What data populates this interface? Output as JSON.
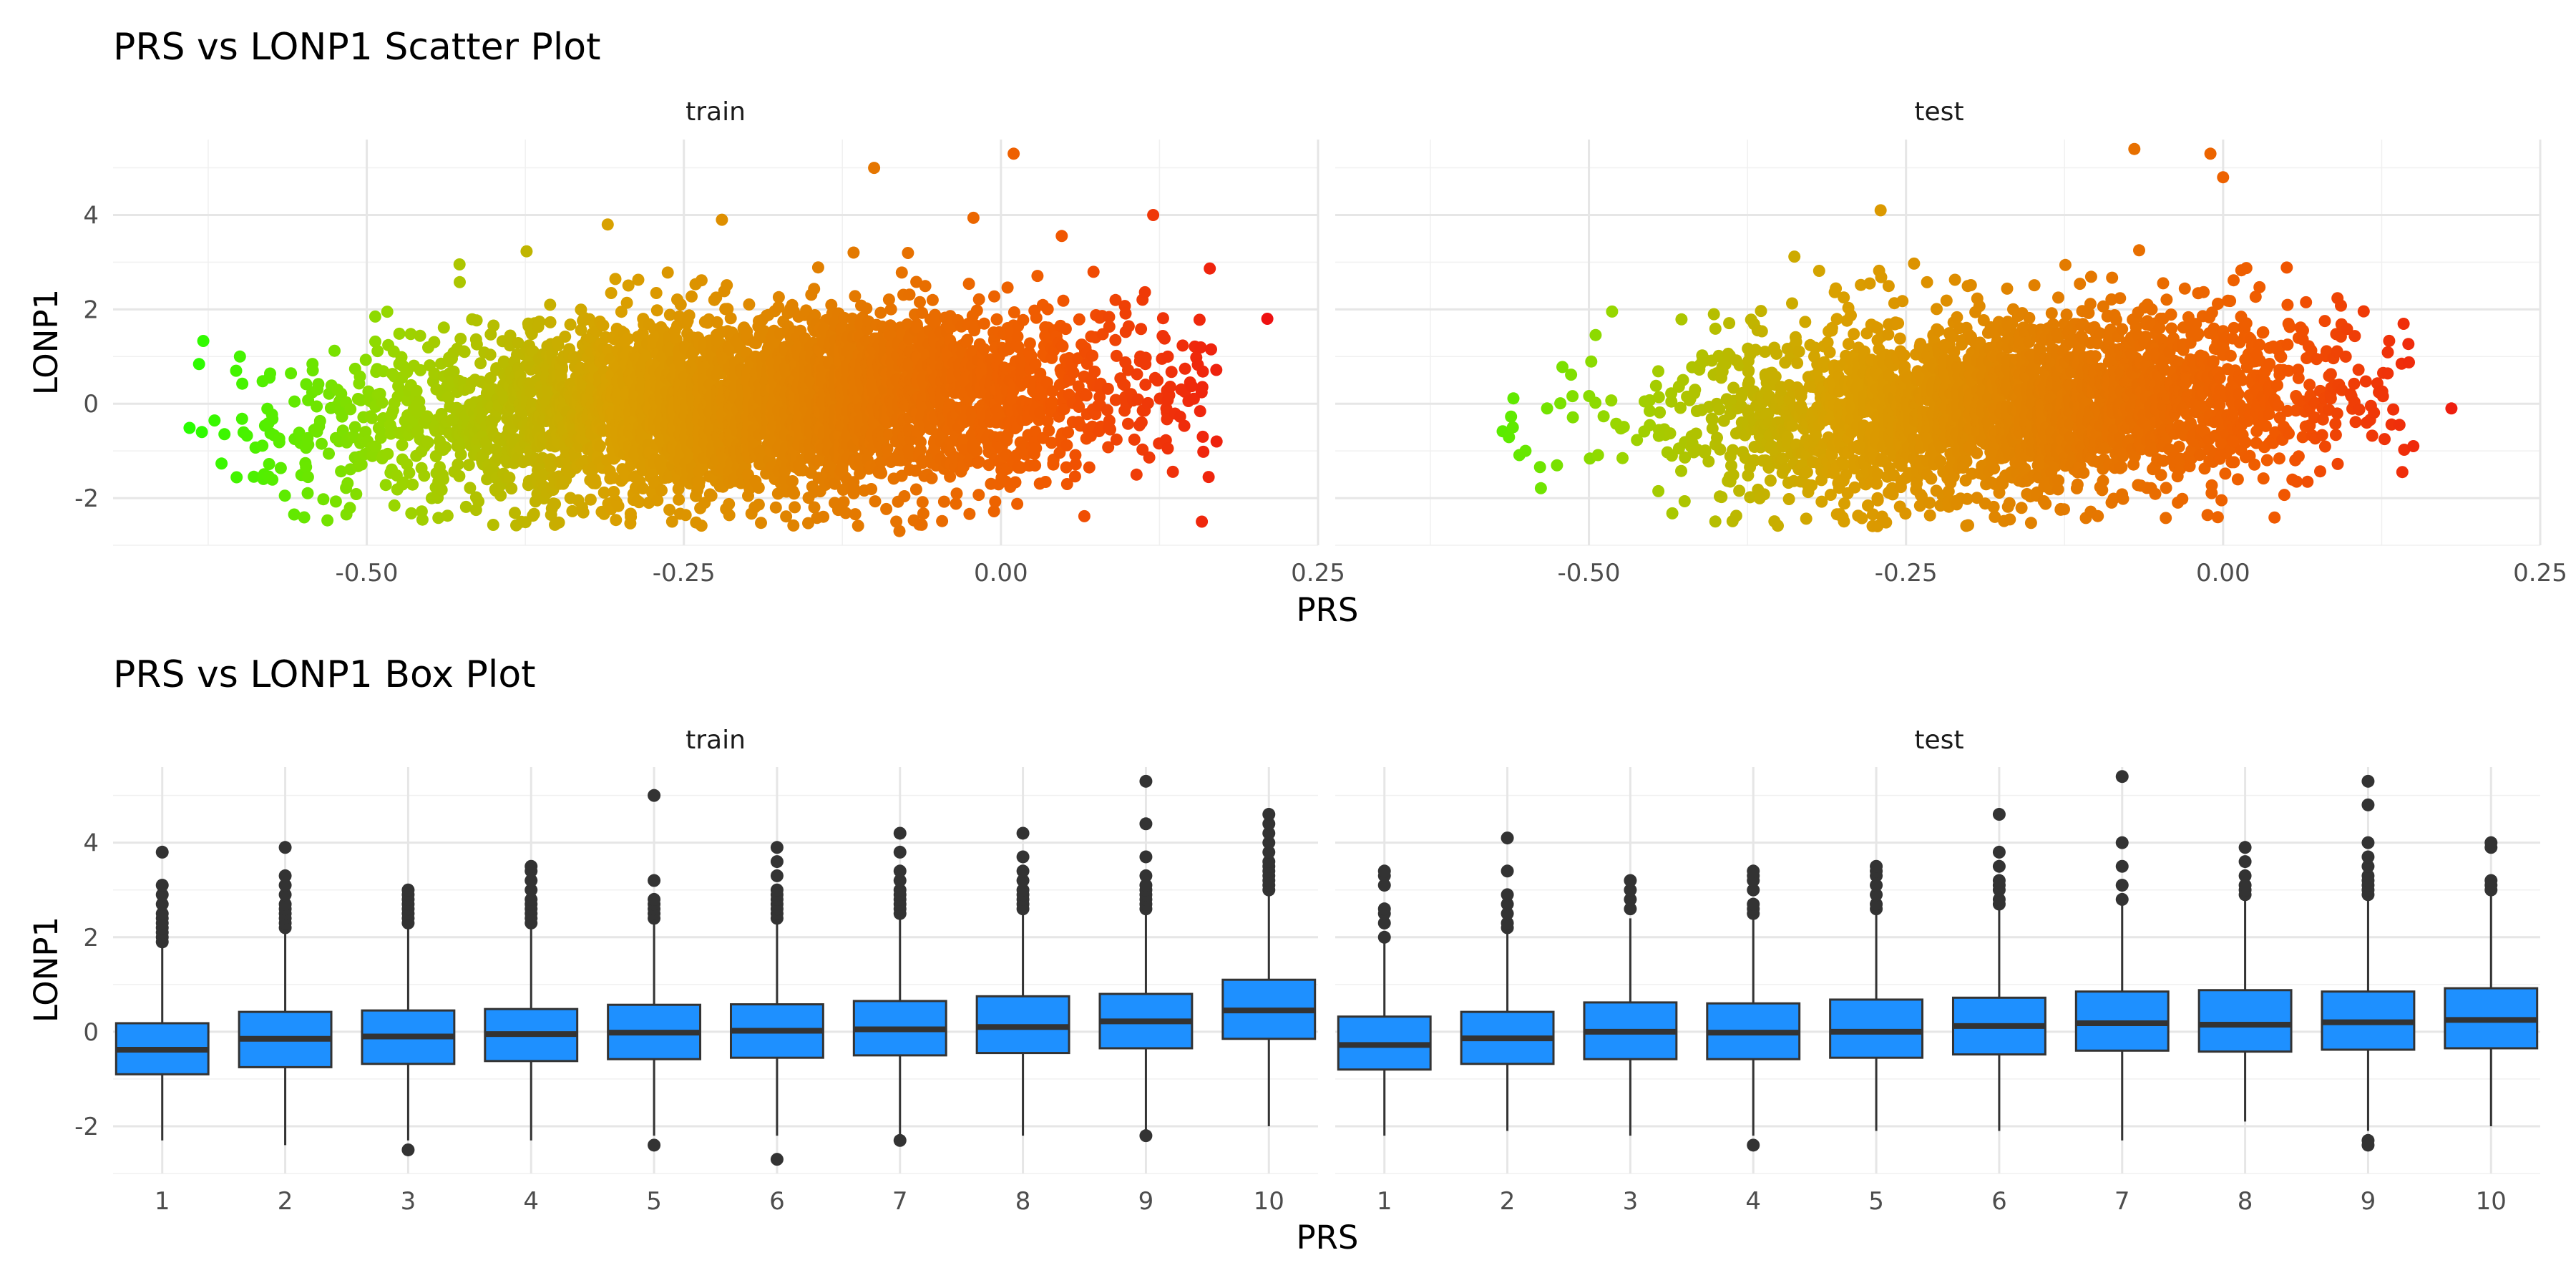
{
  "chart_data": [
    {
      "type": "scatter",
      "title": "PRS vs LONP1 Scatter Plot",
      "xlabel": "PRS",
      "ylabel": "LONP1",
      "xlim": [
        -0.7,
        0.25
      ],
      "ylim": [
        -3.0,
        5.6
      ],
      "x_ticks": [
        -0.5,
        -0.25,
        0.0,
        0.25
      ],
      "x_tick_labels": [
        "-0.50",
        "-0.25",
        "0.00",
        "0.25"
      ],
      "y_ticks": [
        -2,
        0,
        2,
        4
      ],
      "y_tick_labels": [
        "-2",
        "0",
        "2",
        "4"
      ],
      "grid": true,
      "color_gradient": [
        "#22ff00",
        "#99d600",
        "#d9a000",
        "#e27d00",
        "#f05a00",
        "#ee1111"
      ],
      "color_range": [
        -0.65,
        0.21
      ],
      "panels": [
        {
          "name": "train",
          "center_x": -0.2,
          "spread_x": 0.15,
          "min_x": -0.64,
          "max_x": 0.17,
          "corr_slope": 1.2,
          "resid_sd": 0.95,
          "point_count": 4200,
          "outliers": [
            [
              0.21,
              1.8
            ],
            [
              0.17,
              -0.8
            ],
            [
              -0.1,
              5.0
            ],
            [
              0.01,
              5.3
            ],
            [
              0.12,
              4.0
            ],
            [
              -0.31,
              3.8
            ],
            [
              -0.22,
              3.9
            ],
            [
              -0.08,
              -2.7
            ],
            [
              -0.63,
              -0.6
            ],
            [
              -0.6,
              1.0
            ]
          ]
        },
        {
          "name": "test",
          "center_x": -0.16,
          "spread_x": 0.13,
          "min_x": -0.57,
          "max_x": 0.15,
          "corr_slope": 1.2,
          "resid_sd": 0.95,
          "point_count": 2800,
          "outliers": [
            [
              0.18,
              -0.1
            ],
            [
              -0.07,
              5.4
            ],
            [
              -0.01,
              5.3
            ],
            [
              0.0,
              4.8
            ],
            [
              -0.27,
              4.1
            ],
            [
              -0.56,
              -0.5
            ],
            [
              0.15,
              -0.9
            ],
            [
              -0.55,
              -1.0
            ],
            [
              -0.18,
              -2.4
            ]
          ]
        }
      ]
    },
    {
      "type": "box",
      "title": "PRS vs LONP1 Box Plot",
      "xlabel": "PRS",
      "ylabel": "LONP1",
      "categories": [
        "1",
        "2",
        "3",
        "4",
        "5",
        "6",
        "7",
        "8",
        "9",
        "10"
      ],
      "ylim": [
        -3.0,
        5.6
      ],
      "y_ticks": [
        -2,
        0,
        2,
        4
      ],
      "y_tick_labels": [
        "-2",
        "0",
        "2",
        "4"
      ],
      "box_color": "#1e90ff",
      "grid": true,
      "panels": [
        {
          "name": "train",
          "stats": [
            {
              "q1": -0.9,
              "median": -0.38,
              "q3": 0.18,
              "low": -2.3,
              "high": 1.8,
              "outliers": [
                1.9,
                2.0,
                2.1,
                2.2,
                2.3,
                2.4,
                2.5,
                2.7,
                2.9,
                3.1,
                3.8
              ]
            },
            {
              "q1": -0.75,
              "median": -0.15,
              "q3": 0.42,
              "low": -2.4,
              "high": 2.1,
              "outliers": [
                2.2,
                2.3,
                2.4,
                2.5,
                2.6,
                2.7,
                2.9,
                3.1,
                3.3,
                3.9
              ]
            },
            {
              "q1": -0.68,
              "median": -0.1,
              "q3": 0.45,
              "low": -2.3,
              "high": 2.2,
              "outliers": [
                2.3,
                2.4,
                2.5,
                2.6,
                2.7,
                2.8,
                2.9,
                3.0,
                -2.5
              ]
            },
            {
              "q1": -0.62,
              "median": -0.05,
              "q3": 0.48,
              "low": -2.3,
              "high": 2.2,
              "outliers": [
                2.3,
                2.4,
                2.5,
                2.6,
                2.7,
                2.8,
                3.0,
                3.2,
                3.4,
                3.5
              ]
            },
            {
              "q1": -0.58,
              "median": -0.02,
              "q3": 0.57,
              "low": -2.2,
              "high": 2.3,
              "outliers": [
                2.4,
                2.5,
                2.6,
                2.7,
                2.8,
                3.2,
                5.0,
                -2.4
              ]
            },
            {
              "q1": -0.55,
              "median": 0.02,
              "q3": 0.58,
              "low": -2.2,
              "high": 2.3,
              "outliers": [
                2.4,
                2.5,
                2.6,
                2.7,
                2.8,
                2.9,
                3.0,
                3.3,
                3.6,
                3.9,
                -2.7
              ]
            },
            {
              "q1": -0.5,
              "median": 0.05,
              "q3": 0.65,
              "low": -2.3,
              "high": 2.4,
              "outliers": [
                2.5,
                2.6,
                2.7,
                2.8,
                2.9,
                3.0,
                3.2,
                3.4,
                3.8,
                4.2,
                -2.3
              ]
            },
            {
              "q1": -0.45,
              "median": 0.1,
              "q3": 0.75,
              "low": -2.2,
              "high": 2.5,
              "outliers": [
                2.6,
                2.7,
                2.8,
                2.9,
                3.0,
                3.2,
                3.4,
                3.7,
                4.2
              ]
            },
            {
              "q1": -0.35,
              "median": 0.22,
              "q3": 0.8,
              "low": -2.1,
              "high": 2.5,
              "outliers": [
                2.6,
                2.7,
                2.8,
                2.9,
                3.0,
                3.1,
                3.3,
                3.7,
                4.4,
                5.3,
                -2.2
              ]
            },
            {
              "q1": -0.15,
              "median": 0.45,
              "q3": 1.1,
              "low": -2.0,
              "high": 2.9,
              "outliers": [
                3.0,
                3.1,
                3.2,
                3.3,
                3.4,
                3.5,
                3.6,
                3.8,
                4.0,
                4.2,
                4.4,
                4.6
              ]
            }
          ]
        },
        {
          "name": "test",
          "stats": [
            {
              "q1": -0.8,
              "median": -0.28,
              "q3": 0.32,
              "low": -2.2,
              "high": 1.9,
              "outliers": [
                2.0,
                2.3,
                2.5,
                2.6,
                3.1,
                3.3,
                3.4
              ]
            },
            {
              "q1": -0.68,
              "median": -0.14,
              "q3": 0.42,
              "low": -2.1,
              "high": 2.1,
              "outliers": [
                2.2,
                2.3,
                2.5,
                2.7,
                2.9,
                3.4,
                4.1
              ]
            },
            {
              "q1": -0.58,
              "median": 0.0,
              "q3": 0.62,
              "low": -2.2,
              "high": 2.4,
              "outliers": [
                2.6,
                2.8,
                3.0,
                3.2
              ]
            },
            {
              "q1": -0.58,
              "median": -0.02,
              "q3": 0.6,
              "low": -2.2,
              "high": 2.4,
              "outliers": [
                2.5,
                2.6,
                2.7,
                3.0,
                3.2,
                3.3,
                3.4,
                -2.4
              ]
            },
            {
              "q1": -0.55,
              "median": 0.0,
              "q3": 0.68,
              "low": -2.1,
              "high": 2.5,
              "outliers": [
                2.6,
                2.7,
                2.9,
                3.1,
                3.3,
                3.4,
                3.5
              ]
            },
            {
              "q1": -0.48,
              "median": 0.12,
              "q3": 0.72,
              "low": -2.1,
              "high": 2.6,
              "outliers": [
                2.7,
                2.8,
                3.0,
                3.1,
                3.2,
                3.5,
                3.8,
                4.6
              ]
            },
            {
              "q1": -0.4,
              "median": 0.18,
              "q3": 0.85,
              "low": -2.3,
              "high": 2.7,
              "outliers": [
                2.8,
                3.1,
                3.5,
                4.0,
                5.4
              ]
            },
            {
              "q1": -0.42,
              "median": 0.15,
              "q3": 0.88,
              "low": -1.9,
              "high": 2.8,
              "outliers": [
                2.9,
                3.0,
                3.1,
                3.3,
                3.6,
                3.9
              ]
            },
            {
              "q1": -0.38,
              "median": 0.2,
              "q3": 0.85,
              "low": -2.1,
              "high": 2.8,
              "outliers": [
                2.9,
                3.0,
                3.1,
                3.2,
                3.3,
                3.5,
                3.7,
                4.0,
                4.8,
                5.3,
                -2.3,
                -2.4
              ]
            },
            {
              "q1": -0.35,
              "median": 0.25,
              "q3": 0.92,
              "low": -2.0,
              "high": 2.9,
              "outliers": [
                3.0,
                3.1,
                3.2,
                3.9,
                4.0
              ]
            }
          ]
        }
      ]
    }
  ]
}
